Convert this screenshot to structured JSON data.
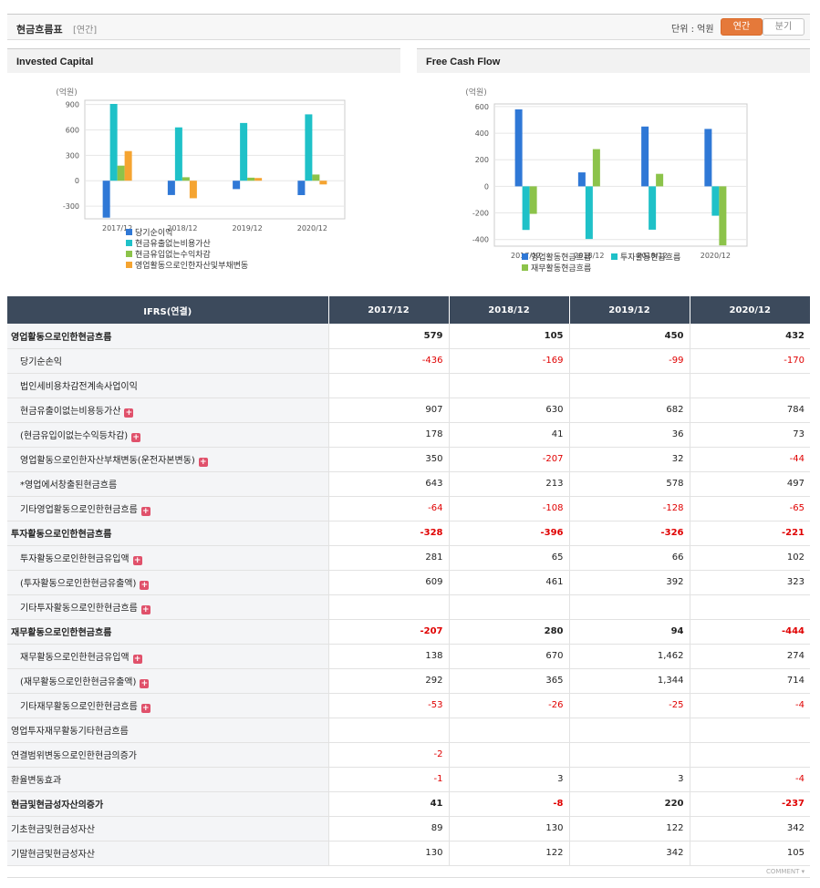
{
  "header": {
    "title": "현금흐름표",
    "subtitle": "[연간]",
    "unit": "단위 : 억원",
    "toggle_annual": "연간",
    "toggle_quarter": "분기"
  },
  "colors": {
    "accent": "#e5793a",
    "negative": "#e00000",
    "table_header": "#3c4a5c"
  },
  "charts": {
    "left_title": "Invested Capital",
    "right_title": "Free Cash Flow"
  },
  "chart_data": [
    {
      "type": "bar",
      "title": "Invested Capital",
      "ylabel": "(억원)",
      "ylim": [
        -450,
        950
      ],
      "yticks": [
        900,
        600,
        300,
        0,
        -300
      ],
      "grid": true,
      "legend_position": "bottom",
      "categories": [
        "2017/12",
        "2018/12",
        "2019/12",
        "2020/12"
      ],
      "series": [
        {
          "name": "당기순이익",
          "color": "#2f78d6",
          "values": [
            -436,
            -169,
            -99,
            -170
          ]
        },
        {
          "name": "현금유출없는비용가산",
          "color": "#1fc1c8",
          "values": [
            907,
            630,
            682,
            784
          ]
        },
        {
          "name": "현금유입없는수익차감",
          "color": "#8cc34a",
          "values": [
            178,
            41,
            36,
            73
          ]
        },
        {
          "name": "영업활동으로인한자산및부채변동",
          "color": "#f5a431",
          "values": [
            350,
            -207,
            32,
            -44
          ]
        }
      ]
    },
    {
      "type": "bar",
      "title": "Free Cash Flow",
      "ylabel": "(억원)",
      "ylim": [
        -450,
        620
      ],
      "yticks": [
        600,
        400,
        200,
        0,
        -200,
        -400
      ],
      "grid": true,
      "legend_position": "bottom",
      "categories": [
        "2017/12",
        "2018/12",
        "2019/12",
        "2020/12"
      ],
      "series": [
        {
          "name": "영업활동현금흐름",
          "color": "#2f78d6",
          "values": [
            579,
            105,
            450,
            432
          ]
        },
        {
          "name": "투자활동현금흐름",
          "color": "#1fc1c8",
          "values": [
            -328,
            -396,
            -326,
            -221
          ]
        },
        {
          "name": "재무활동현금흐름",
          "color": "#8cc34a",
          "values": [
            -207,
            280,
            94,
            -444
          ]
        }
      ]
    }
  ],
  "table": {
    "headers": [
      "IFRS(연결)",
      "2017/12",
      "2018/12",
      "2019/12",
      "2020/12"
    ],
    "rows": [
      {
        "label": "영업활동으로인한현금흐름",
        "values": [
          "579",
          "105",
          "450",
          "432"
        ],
        "level": 0,
        "bold": true,
        "expand": false
      },
      {
        "label": "당기순손익",
        "values": [
          "-436",
          "-169",
          "-99",
          "-170"
        ],
        "level": 1,
        "bold": false,
        "expand": false
      },
      {
        "label": "법인세비용차감전계속사업이익",
        "values": [
          "",
          "",
          "",
          ""
        ],
        "level": 1,
        "bold": false,
        "expand": false
      },
      {
        "label": "현금유출이없는비용등가산",
        "values": [
          "907",
          "630",
          "682",
          "784"
        ],
        "level": 1,
        "bold": false,
        "expand": true
      },
      {
        "label": "(현금유입이없는수익등차감)",
        "values": [
          "178",
          "41",
          "36",
          "73"
        ],
        "level": 1,
        "bold": false,
        "expand": true
      },
      {
        "label": "영업활동으로인한자산부채변동(운전자본변동)",
        "values": [
          "350",
          "-207",
          "32",
          "-44"
        ],
        "level": 1,
        "bold": false,
        "expand": true
      },
      {
        "label": "*영업에서창출된현금흐름",
        "values": [
          "643",
          "213",
          "578",
          "497"
        ],
        "level": 1,
        "bold": false,
        "expand": false
      },
      {
        "label": "기타영업활동으로인한현금흐름",
        "values": [
          "-64",
          "-108",
          "-128",
          "-65"
        ],
        "level": 1,
        "bold": false,
        "expand": true
      },
      {
        "label": "투자활동으로인한현금흐름",
        "values": [
          "-328",
          "-396",
          "-326",
          "-221"
        ],
        "level": 0,
        "bold": true,
        "expand": false
      },
      {
        "label": "투자활동으로인한현금유입액",
        "values": [
          "281",
          "65",
          "66",
          "102"
        ],
        "level": 1,
        "bold": false,
        "expand": true
      },
      {
        "label": "(투자활동으로인한현금유출액)",
        "values": [
          "609",
          "461",
          "392",
          "323"
        ],
        "level": 1,
        "bold": false,
        "expand": true
      },
      {
        "label": "기타투자활동으로인한현금흐름",
        "values": [
          "",
          "",
          "",
          ""
        ],
        "level": 1,
        "bold": false,
        "expand": true
      },
      {
        "label": "재무활동으로인한현금흐름",
        "values": [
          "-207",
          "280",
          "94",
          "-444"
        ],
        "level": 0,
        "bold": true,
        "expand": false
      },
      {
        "label": "재무활동으로인한현금유입액",
        "values": [
          "138",
          "670",
          "1,462",
          "274"
        ],
        "level": 1,
        "bold": false,
        "expand": true
      },
      {
        "label": "(재무활동으로인한현금유출액)",
        "values": [
          "292",
          "365",
          "1,344",
          "714"
        ],
        "level": 1,
        "bold": false,
        "expand": true
      },
      {
        "label": "기타재무활동으로인한현금흐름",
        "values": [
          "-53",
          "-26",
          "-25",
          "-4"
        ],
        "level": 1,
        "bold": false,
        "expand": true
      },
      {
        "label": "영업투자재무활동기타현금흐름",
        "values": [
          "",
          "",
          "",
          ""
        ],
        "level": 0,
        "bold": false,
        "expand": false
      },
      {
        "label": "연결범위변동으로인한현금의증가",
        "values": [
          "-2",
          "",
          "",
          ""
        ],
        "level": 0,
        "bold": false,
        "expand": false
      },
      {
        "label": "환율변동효과",
        "values": [
          "-1",
          "3",
          "3",
          "-4"
        ],
        "level": 0,
        "bold": false,
        "expand": false
      },
      {
        "label": "현금및현금성자산의증가",
        "values": [
          "41",
          "-8",
          "220",
          "-237"
        ],
        "level": 0,
        "bold": true,
        "expand": false
      },
      {
        "label": "기초현금및현금성자산",
        "values": [
          "89",
          "130",
          "122",
          "342"
        ],
        "level": 0,
        "bold": false,
        "expand": false
      },
      {
        "label": "기말현금및현금성자산",
        "values": [
          "130",
          "122",
          "342",
          "105"
        ],
        "level": 0,
        "bold": false,
        "expand": false
      }
    ]
  },
  "footer": {
    "comment_label": "COMMENT ▾"
  }
}
